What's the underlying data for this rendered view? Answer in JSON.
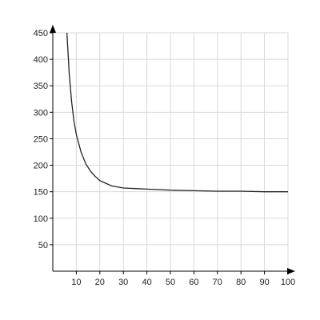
{
  "chart_data": {
    "type": "line",
    "title": "",
    "xlabel": "",
    "ylabel": "",
    "xlim": [
      0,
      100
    ],
    "ylim": [
      0,
      450
    ],
    "grid": true,
    "x_ticks": [
      10,
      20,
      30,
      40,
      50,
      60,
      70,
      80,
      90,
      100
    ],
    "y_ticks": [
      50,
      100,
      150,
      200,
      250,
      300,
      350,
      400,
      450
    ],
    "series": [
      {
        "color": "#222222",
        "x": [
          6,
          7,
          8,
          9,
          10,
          12,
          14,
          16,
          18,
          20,
          25,
          30,
          35,
          40,
          45,
          50,
          60,
          70,
          80,
          90,
          100
        ],
        "y": [
          450,
          372,
          320,
          283,
          258,
          225,
          203,
          189,
          179,
          171,
          161,
          157,
          156,
          155,
          154,
          153,
          152,
          151,
          151,
          150,
          150
        ]
      }
    ]
  }
}
